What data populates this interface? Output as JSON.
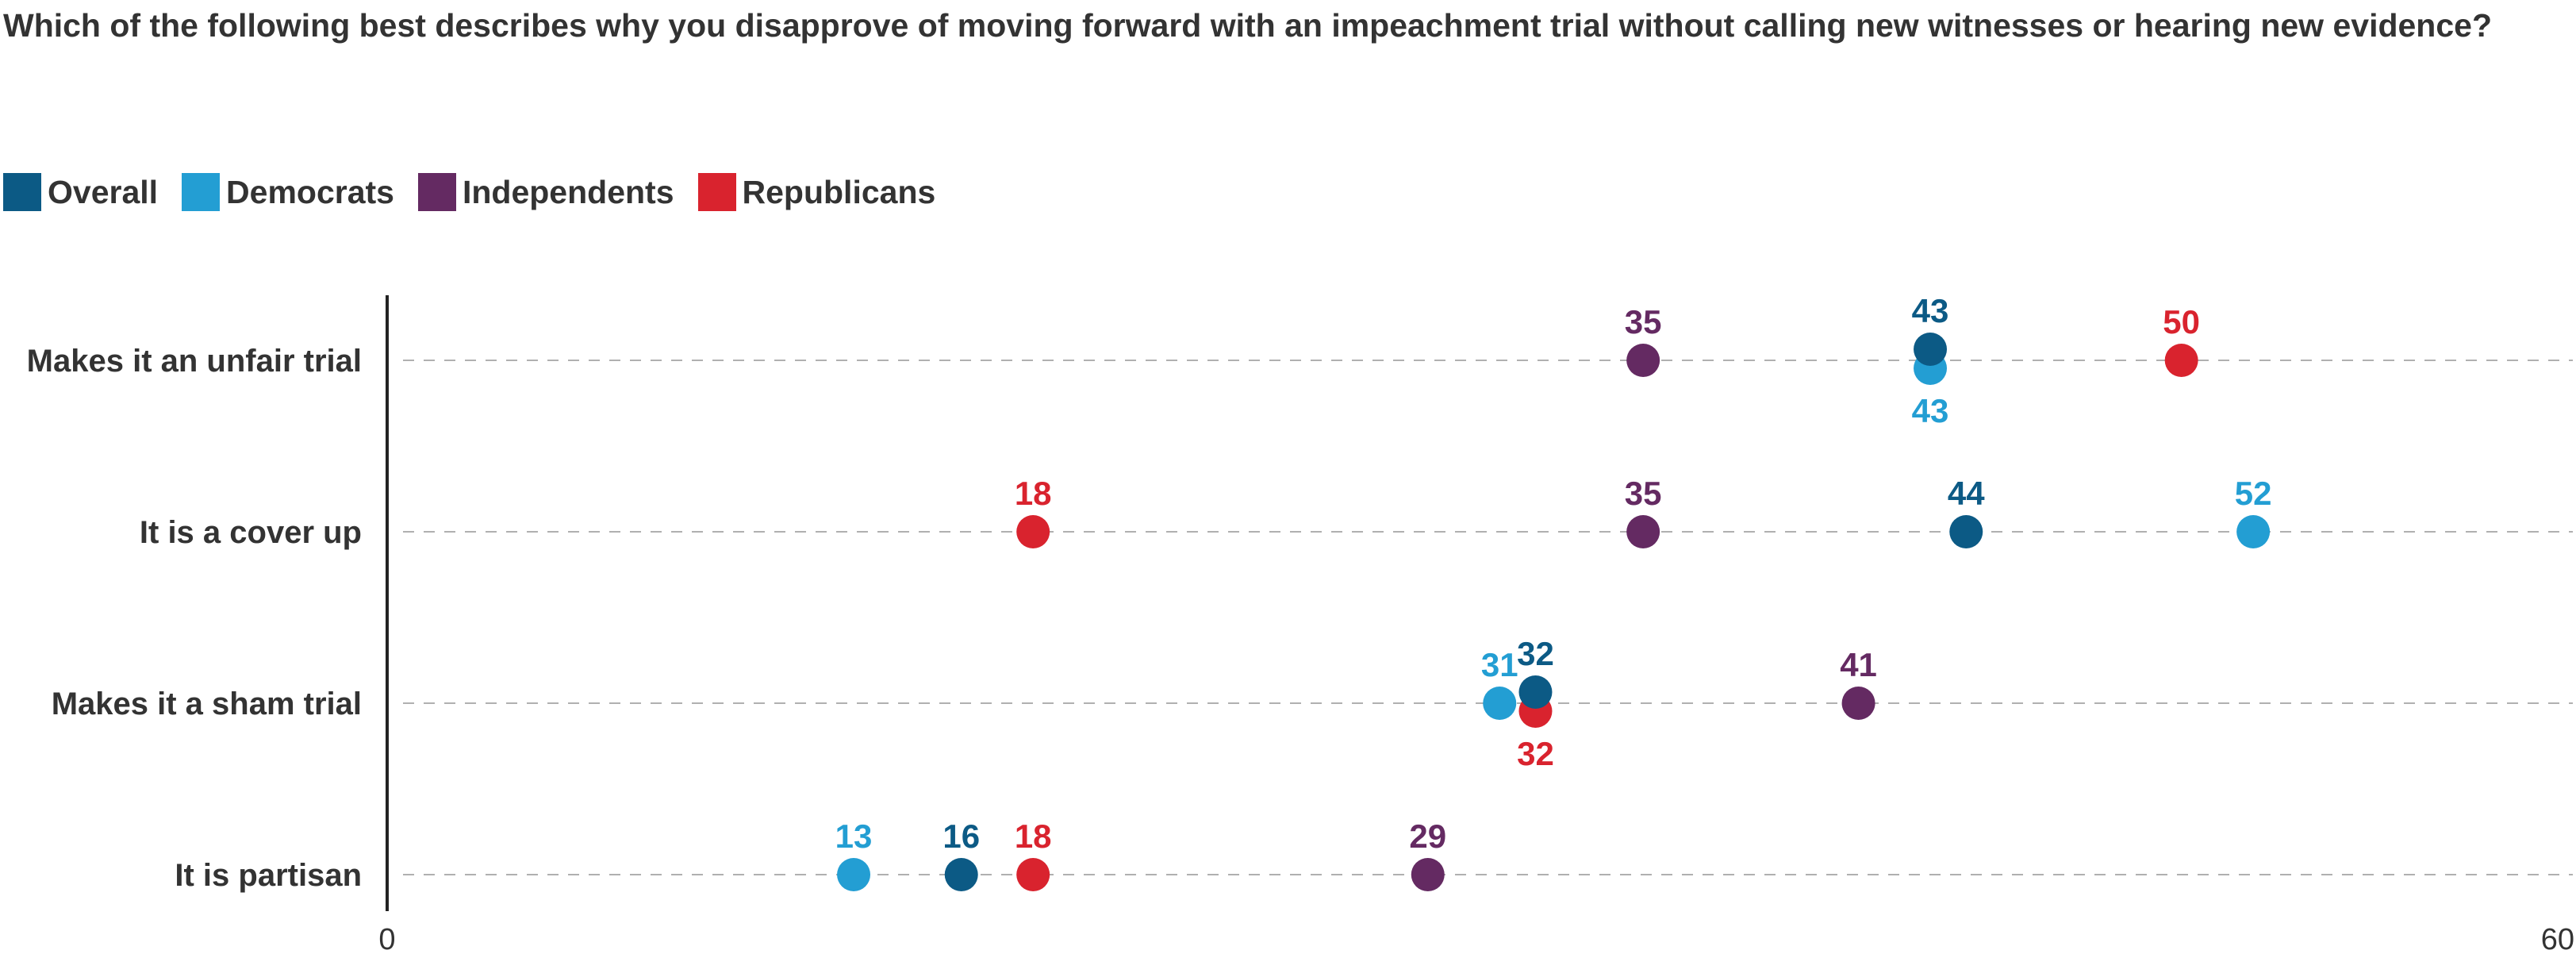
{
  "chart_data": {
    "type": "scatter",
    "title": "Which of the following best describes why you disapprove of moving forward with an impeachment trial without calling new witnesses or hearing new evidence?",
    "xlabel": "",
    "ylabel": "",
    "xlim": [
      0,
      60
    ],
    "x_ticks": [
      "0",
      "60"
    ],
    "grid": true,
    "legend_position": "top-left",
    "categories": [
      "Makes it an unfair trial",
      "It is a cover up",
      "Makes it a sham trial",
      "It is partisan"
    ],
    "series": [
      {
        "name": "Overall",
        "color": "#0c5a85",
        "values": [
          43,
          44,
          32,
          16
        ]
      },
      {
        "name": "Democrats",
        "color": "#239ed3",
        "values": [
          43,
          52,
          31,
          13
        ]
      },
      {
        "name": "Independents",
        "color": "#642a62",
        "values": [
          35,
          35,
          41,
          29
        ]
      },
      {
        "name": "Republicans",
        "color": "#d9232e",
        "values": [
          50,
          18,
          32,
          18
        ]
      }
    ]
  }
}
